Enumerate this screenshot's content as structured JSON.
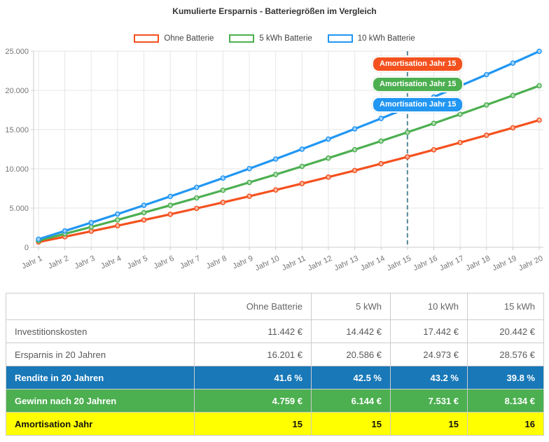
{
  "chart": {
    "title": "Kumulierte Ersparnis - Batteriegrößen im Vergleich",
    "legend": [
      {
        "label": "Ohne Batterie",
        "color": "#f4511e"
      },
      {
        "label": "5 kWh Batterie",
        "color": "#4caf50"
      },
      {
        "label": "10 kWh Batterie",
        "color": "#2196f3"
      }
    ],
    "annotations": [
      {
        "label": "Amortisation Jahr 15",
        "color": "#f4511e"
      },
      {
        "label": "Amortisation Jahr 15",
        "color": "#4caf50"
      },
      {
        "label": "Amortisation Jahr 15",
        "color": "#2196f3"
      }
    ],
    "amortisation_marker_year": 15
  },
  "chart_data": {
    "type": "line",
    "title": "Kumulierte Ersparnis - Batteriegrößen im Vergleich",
    "categories": [
      "Jahr 1",
      "Jahr 2",
      "Jahr 3",
      "Jahr 4",
      "Jahr 5",
      "Jahr 6",
      "Jahr 7",
      "Jahr 8",
      "Jahr 9",
      "Jahr 10",
      "Jahr 11",
      "Jahr 12",
      "Jahr 13",
      "Jahr 14",
      "Jahr 15",
      "Jahr 16",
      "Jahr 17",
      "Jahr 18",
      "Jahr 19",
      "Jahr 20"
    ],
    "series": [
      {
        "name": "Ohne Batterie",
        "color": "#f4511e",
        "values": [
          667,
          1347,
          2041,
          2748,
          3470,
          4206,
          4957,
          5723,
          6504,
          7301,
          8114,
          8943,
          9789,
          10651,
          11531,
          12429,
          13344,
          14278,
          15230,
          16201
        ]
      },
      {
        "name": "5 kWh Batterie",
        "color": "#4caf50",
        "values": [
          847,
          1711,
          2593,
          3492,
          4409,
          5345,
          6299,
          7272,
          8265,
          9277,
          10310,
          11364,
          12438,
          13534,
          14652,
          15792,
          16955,
          18142,
          19352,
          20586
        ]
      },
      {
        "name": "10 kWh Batterie",
        "color": "#2196f3",
        "values": [
          1028,
          2076,
          3145,
          4236,
          5349,
          6483,
          7641,
          8822,
          10026,
          11254,
          12507,
          13785,
          15089,
          16418,
          17774,
          19157,
          20568,
          22007,
          23476,
          24973
        ]
      }
    ],
    "xlabel": "",
    "ylabel": "",
    "ylim": [
      0,
      25000
    ],
    "y_ticks": [
      0,
      5000,
      10000,
      15000,
      20000,
      25000
    ],
    "y_tick_labels": [
      "0",
      "5.000",
      "10.000",
      "15.000",
      "20.000",
      "25.000"
    ],
    "grid": true,
    "legend_position": "top",
    "annotation_vline_category": "Jahr 15",
    "annotation_vline_color": "#55899b"
  },
  "table": {
    "headers": [
      "",
      "Ohne Batterie",
      "5 kWh",
      "10 kWh",
      "15 kWh"
    ],
    "rows": [
      {
        "label": "Investitionskosten",
        "style": "plain",
        "values": [
          "11.442 €",
          "14.442 €",
          "17.442 €",
          "20.442 €"
        ]
      },
      {
        "label": "Ersparnis in 20 Jahren",
        "style": "plain",
        "values": [
          "16.201 €",
          "20.586 €",
          "24.973 €",
          "28.576 €"
        ]
      },
      {
        "label": "Rendite in 20 Jahren",
        "style": "blue",
        "values": [
          "41.6 %",
          "42.5 %",
          "43.2 %",
          "39.8 %"
        ]
      },
      {
        "label": "Gewinn nach 20 Jahren",
        "style": "green",
        "values": [
          "4.759 €",
          "6.144 €",
          "7.531 €",
          "8.134 €"
        ]
      },
      {
        "label": "Amortisation Jahr",
        "style": "yellow",
        "values": [
          "15",
          "15",
          "15",
          "16"
        ]
      }
    ]
  },
  "colors": {
    "orange": "#f4511e",
    "green": "#4caf50",
    "blue": "#2196f3",
    "table_blue_row": "#1878b8",
    "table_green_row": "#4caf50",
    "table_yellow_row": "#ffff00",
    "grid": "#e6e6e6",
    "axis": "#cccccc",
    "tick_text": "#757575",
    "dashed_line": "#55899b"
  }
}
